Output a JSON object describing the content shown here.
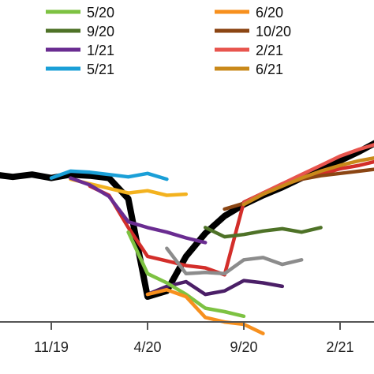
{
  "chart_data": {
    "type": "line",
    "x_tick_labels": [
      "11/19",
      "4/20",
      "9/20",
      "2/21"
    ],
    "grid": false,
    "legend_placement": "top",
    "actual": {
      "color": "#000000",
      "x": [
        "2019-08",
        "2019-09",
        "2019-10",
        "2019-11",
        "2019-12",
        "2020-01",
        "2020-02",
        "2020-03",
        "2020-04",
        "2020-05",
        "2020-06",
        "2020-07",
        "2020-08",
        "2020-09",
        "2020-10",
        "2020-11",
        "2020-12",
        "2021-01",
        "2021-02",
        "2021-03",
        "2021-04",
        "2021-05",
        "2021-06"
      ],
      "y": [
        98.6,
        98.4,
        98.6,
        98.3,
        98.6,
        98.5,
        98.3,
        96.5,
        88.0,
        88.5,
        91.5,
        93.5,
        95.0,
        96.0,
        96.8,
        97.5,
        98.3,
        99.0,
        99.8,
        100.6,
        101.5,
        102.3,
        103.0
      ]
    },
    "series": [
      {
        "name": "5/20",
        "color": "#7dc242",
        "x": [
          "2020-03",
          "2020-04",
          "2020-05",
          "2020-06",
          "2020-07",
          "2020-08",
          "2020-09"
        ],
        "y": [
          93.6,
          90.0,
          89.2,
          88.2,
          87.0,
          86.7,
          86.3
        ]
      },
      {
        "name": "6/20",
        "color": "#f7901e",
        "x": [
          "2020-04",
          "2020-05",
          "2020-06",
          "2020-07",
          "2020-08",
          "2020-09",
          "2020-10"
        ],
        "y": [
          88.2,
          88.6,
          88.0,
          86.2,
          85.8,
          85.6,
          84.8
        ]
      },
      {
        "name": "9/20",
        "color": "#4e7227",
        "x": [
          "2020-07",
          "2020-08",
          "2020-09",
          "2020-10",
          "2020-11",
          "2020-12",
          "2021-01"
        ],
        "y": [
          94.0,
          93.2,
          93.4,
          93.7,
          93.9,
          93.6,
          94.0
        ]
      },
      {
        "name": "10/20",
        "color": "#8b4513",
        "x": [
          "2020-08",
          "2020-09",
          "2020-10",
          "2020-11",
          "2020-12",
          "2021-01",
          "2021-02",
          "2021-03",
          "2021-04",
          "2021-05",
          "2021-06"
        ],
        "y": [
          95.6,
          96.1,
          97.0,
          97.7,
          98.2,
          98.5,
          98.7,
          98.9,
          99.1,
          99.4,
          99.6
        ]
      },
      {
        "name": "1/21",
        "color": "#6a2c91",
        "x": [
          "2019-12",
          "2020-01",
          "2020-02",
          "2020-03",
          "2020-04",
          "2020-05",
          "2020-06",
          "2020-07"
        ],
        "y": [
          98.3,
          97.7,
          96.7,
          94.5,
          94.0,
          93.6,
          93.1,
          92.7
        ]
      },
      {
        "name": "2/21",
        "color": "#e8554e",
        "x": [
          "2020-09",
          "2020-10",
          "2020-11",
          "2020-12",
          "2021-01",
          "2021-02",
          "2021-03",
          "2021-04",
          "2021-05",
          "2021-06"
        ],
        "y": [
          96.1,
          97.0,
          97.8,
          98.6,
          99.4,
          100.2,
          100.8,
          101.3,
          101.8,
          102.0
        ]
      },
      {
        "name": "5/21",
        "color": "#1a9fd7",
        "x": [
          "2019-11",
          "2019-12",
          "2020-01",
          "2020-02",
          "2020-03",
          "2020-04",
          "2020-05"
        ],
        "y": [
          98.3,
          98.9,
          98.8,
          98.6,
          98.4,
          98.7,
          98.2
        ]
      },
      {
        "name": "6/21",
        "color": "#c9891a",
        "x": [
          "2020-09",
          "2020-10",
          "2020-11",
          "2020-12",
          "2021-01",
          "2021-02",
          "2021-03",
          "2021-04",
          "2021-05",
          "2021-06"
        ],
        "y": [
          96.0,
          96.9,
          97.6,
          98.3,
          98.9,
          99.4,
          99.8,
          100.1,
          100.4,
          100.6
        ]
      }
    ],
    "extra_lines": [
      {
        "color": "#f3b21f",
        "x": [
          "2019-12",
          "2020-01",
          "2020-02",
          "2020-03",
          "2020-04",
          "2020-05",
          "2020-06"
        ],
        "y": [
          98.2,
          97.8,
          97.4,
          97.0,
          97.2,
          96.8,
          96.9
        ]
      },
      {
        "color": "#d32e2a",
        "x": [
          "2020-01",
          "2020-02",
          "2020-03",
          "2020-04",
          "2020-05",
          "2020-06",
          "2020-07",
          "2020-08",
          "2020-09",
          "2020-10",
          "2020-11",
          "2020-12",
          "2021-01",
          "2021-02",
          "2021-03",
          "2021-04",
          "2021-05"
        ],
        "y": [
          97.6,
          96.8,
          94.0,
          91.5,
          91.1,
          90.7,
          90.5,
          89.9,
          96.2,
          97.0,
          97.8,
          98.2,
          98.6,
          99.1,
          99.4,
          99.8,
          100.1
        ]
      },
      {
        "color": "#8c8c8c",
        "x": [
          "2020-05",
          "2020-06",
          "2020-07",
          "2020-08",
          "2020-09",
          "2020-10",
          "2020-11",
          "2020-12"
        ],
        "y": [
          92.2,
          90.0,
          90.1,
          90.0,
          91.2,
          91.4,
          90.8,
          91.2
        ]
      },
      {
        "color": "#4b1f67",
        "x": [
          "2020-04",
          "2020-05",
          "2020-06",
          "2020-07",
          "2020-08",
          "2020-09",
          "2020-10",
          "2020-11"
        ],
        "y": [
          88.2,
          88.9,
          89.3,
          88.2,
          88.5,
          89.4,
          89.2,
          88.9
        ]
      }
    ]
  }
}
